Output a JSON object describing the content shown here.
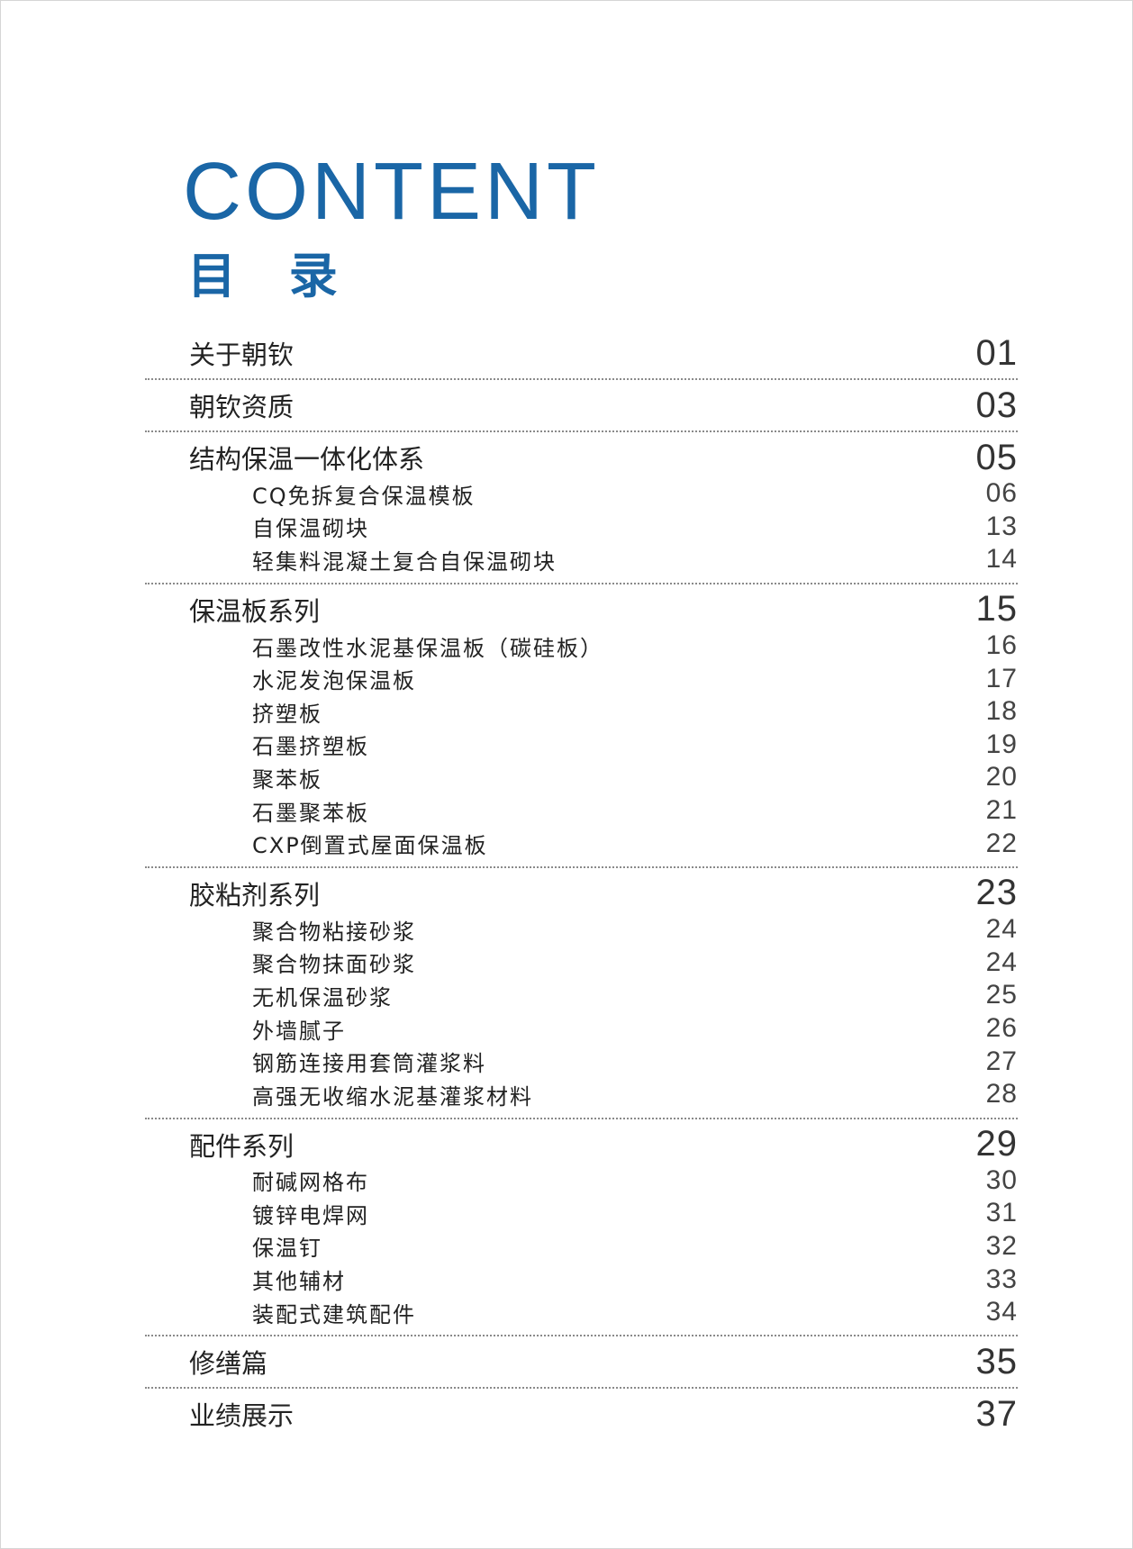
{
  "header": {
    "title_en": "CONTENT",
    "title_cn": "目 录"
  },
  "colors": {
    "accent": "#1a66a6",
    "text": "#222222",
    "divider": "#8a8a8a"
  },
  "sections": [
    {
      "label": "关于朝钦",
      "page": "01",
      "items": []
    },
    {
      "label": "朝钦资质",
      "page": "03",
      "items": []
    },
    {
      "label": "结构保温一体化体系",
      "page": "05",
      "items": [
        {
          "label": "CQ免拆复合保温模板",
          "page": "06"
        },
        {
          "label": "自保温砌块",
          "page": "13"
        },
        {
          "label": "轻集料混凝土复合自保温砌块",
          "page": "14"
        }
      ]
    },
    {
      "label": "保温板系列",
      "page": "15",
      "items": [
        {
          "label": "石墨改性水泥基保温板（碳硅板）",
          "page": "16"
        },
        {
          "label": "水泥发泡保温板",
          "page": "17"
        },
        {
          "label": "挤塑板",
          "page": "18"
        },
        {
          "label": "石墨挤塑板",
          "page": "19"
        },
        {
          "label": "聚苯板",
          "page": "20"
        },
        {
          "label": "石墨聚苯板",
          "page": "21"
        },
        {
          "label": "CXP倒置式屋面保温板",
          "page": "22"
        }
      ]
    },
    {
      "label": "胶粘剂系列",
      "page": "23",
      "items": [
        {
          "label": "聚合物粘接砂浆",
          "page": "24"
        },
        {
          "label": "聚合物抹面砂浆",
          "page": "24"
        },
        {
          "label": "无机保温砂浆",
          "page": "25"
        },
        {
          "label": "外墙腻子",
          "page": "26"
        },
        {
          "label": "钢筋连接用套筒灌浆料",
          "page": "27"
        },
        {
          "label": "高强无收缩水泥基灌浆材料",
          "page": "28"
        }
      ]
    },
    {
      "label": "配件系列",
      "page": "29",
      "items": [
        {
          "label": "耐碱网格布",
          "page": "30"
        },
        {
          "label": "镀锌电焊网",
          "page": "31"
        },
        {
          "label": "保温钉",
          "page": "32"
        },
        {
          "label": "其他辅材",
          "page": "33"
        },
        {
          "label": "装配式建筑配件",
          "page": "34"
        }
      ]
    },
    {
      "label": "修缮篇",
      "page": "35",
      "items": []
    },
    {
      "label": "业绩展示",
      "page": "37",
      "items": []
    }
  ]
}
